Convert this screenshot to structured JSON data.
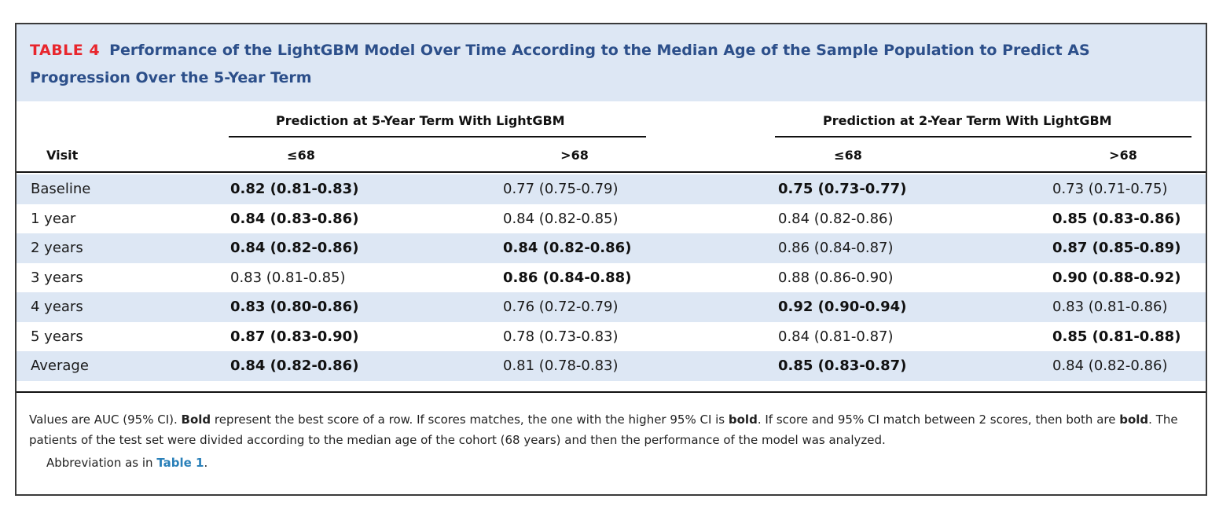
{
  "title": {
    "label": "TABLE 4",
    "text": "Performance of the LightGBM Model Over Time According to the Median Age of the Sample Population to Predict AS Progression Over the 5-Year Term"
  },
  "header": {
    "visit_label": "Visit",
    "group1": "Prediction at 5-Year Term With LightGBM",
    "group2": "Prediction at 2-Year Term With LightGBM",
    "sub1": "≤68",
    "sub2": ">68",
    "sub3": "≤68",
    "sub4": ">68"
  },
  "rows": [
    {
      "visit": "Baseline",
      "v": [
        "0.82 (0.81-0.83)",
        "0.77 (0.75-0.79)",
        "0.75 (0.73-0.77)",
        "0.73 (0.71-0.75)"
      ],
      "bold": [
        true,
        false,
        true,
        false
      ]
    },
    {
      "visit": "1 year",
      "v": [
        "0.84 (0.83-0.86)",
        "0.84 (0.82-0.85)",
        "0.84 (0.82-0.86)",
        "0.85 (0.83-0.86)"
      ],
      "bold": [
        true,
        false,
        false,
        true
      ]
    },
    {
      "visit": "2 years",
      "v": [
        "0.84 (0.82-0.86)",
        "0.84 (0.82-0.86)",
        "0.86 (0.84-0.87)",
        "0.87 (0.85-0.89)"
      ],
      "bold": [
        true,
        true,
        false,
        true
      ]
    },
    {
      "visit": "3 years",
      "v": [
        "0.83 (0.81-0.85)",
        "0.86 (0.84-0.88)",
        "0.88 (0.86-0.90)",
        "0.90 (0.88-0.92)"
      ],
      "bold": [
        false,
        true,
        false,
        true
      ]
    },
    {
      "visit": "4 years",
      "v": [
        "0.83 (0.80-0.86)",
        "0.76 (0.72-0.79)",
        "0.92 (0.90-0.94)",
        "0.83 (0.81-0.86)"
      ],
      "bold": [
        true,
        false,
        true,
        false
      ]
    },
    {
      "visit": "5 years",
      "v": [
        "0.87 (0.83-0.90)",
        "0.78 (0.73-0.83)",
        "0.84 (0.81-0.87)",
        "0.85 (0.81-0.88)"
      ],
      "bold": [
        true,
        false,
        false,
        true
      ]
    },
    {
      "visit": "Average",
      "v": [
        "0.84 (0.82-0.86)",
        "0.81 (0.78-0.83)",
        "0.85 (0.83-0.87)",
        "0.84 (0.82-0.86)"
      ],
      "bold": [
        true,
        false,
        true,
        false
      ]
    }
  ],
  "footnote": {
    "p1": "Values are AUC (95% CI). ",
    "b1": "Bold",
    "p2": " represent the best score of a row. If scores matches, the one with the higher 95% CI is ",
    "b2": "bold",
    "p3": ". If score and 95% CI match between 2 scores, then both are ",
    "b3": "bold",
    "p4": ". The patients of the test set were divided according to the median age of the cohort (68 years) and then the performance of the model was analyzed.",
    "abbrev_prefix": "Abbreviation as in ",
    "abbrev_link": "Table 1",
    "abbrev_suffix": "."
  },
  "colors": {
    "title_band": "#dde7f4",
    "title_label": "#e8262d",
    "title_text": "#2c4f8a",
    "link": "#2a80b9"
  }
}
